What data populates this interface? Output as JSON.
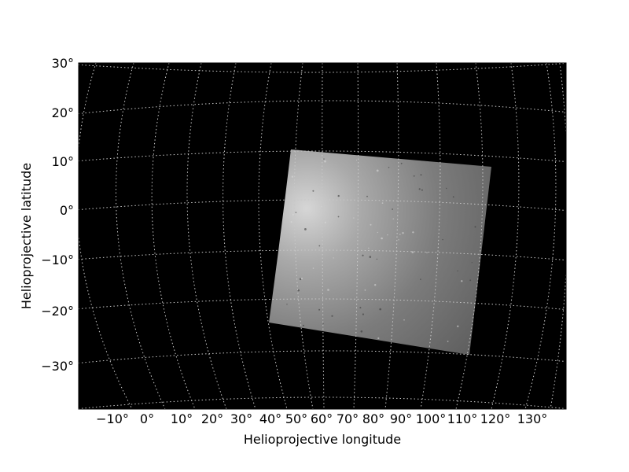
{
  "chart_data": {
    "type": "heatmap",
    "title": "",
    "xlabel": "Helioprojective longitude",
    "ylabel": "Helioprojective latitude",
    "x_tick_labels": [
      "−10°",
      "0°",
      "10°",
      "20°",
      "30°",
      "40°",
      "50°",
      "60°",
      "70°",
      "80°",
      "90°",
      "100°",
      "110°",
      "120°",
      "130°"
    ],
    "y_tick_labels": [
      "30°",
      "20°",
      "10°",
      "0°",
      "−10°",
      "−20°",
      "−30°"
    ],
    "grid": true,
    "background_color": "#000000",
    "grid_color": "#c8c8c8",
    "image_corners_deg": [
      [
        48,
        12
      ],
      [
        121,
        9
      ],
      [
        113,
        -29
      ],
      [
        40,
        -24
      ]
    ]
  }
}
